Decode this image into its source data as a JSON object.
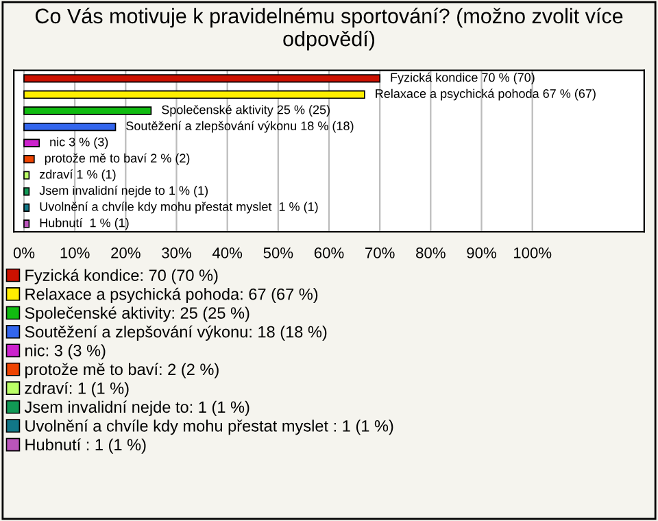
{
  "chart_data": {
    "type": "bar",
    "orientation": "horizontal",
    "title": "Co Vás motivuje k pravidelnému sportování? (možno zvolit více odpovědí)",
    "categories": [
      null,
      null,
      null,
      null,
      null,
      null,
      null,
      null,
      null,
      null
    ],
    "series": [
      {
        "name": "Fyzická kondice: 70 (70 %)",
        "color": "#cc1100",
        "values": [
          70,
          null,
          null,
          null,
          null,
          null,
          null,
          null,
          null,
          null
        ],
        "value_labels": [
          "Fyzická kondice 70 % (70)",
          null,
          null,
          null,
          null,
          null,
          null,
          null,
          null,
          null
        ]
      },
      {
        "name": "Relaxace a psychická pohoda: 67 (67 %)",
        "color": "#ffee00",
        "values": [
          null,
          67,
          null,
          null,
          null,
          null,
          null,
          null,
          null,
          null
        ],
        "value_labels": [
          null,
          "Relaxace a psychická pohoda 67 % (67)",
          null,
          null,
          null,
          null,
          null,
          null,
          null,
          null
        ]
      },
      {
        "name": "Společenské aktivity: 25 (25 %)",
        "color": "#11bb11",
        "values": [
          null,
          null,
          25,
          null,
          null,
          null,
          null,
          null,
          null,
          null
        ],
        "value_labels": [
          null,
          null,
          "Společenské aktivity 25 % (25)",
          null,
          null,
          null,
          null,
          null,
          null,
          null
        ]
      },
      {
        "name": "Soutěžení a zlepšování výkonu: 18 (18 %)",
        "color": "#3366ee",
        "values": [
          null,
          null,
          null,
          18,
          null,
          null,
          null,
          null,
          null,
          null
        ],
        "value_labels": [
          null,
          null,
          null,
          "Soutěžení a zlepšování výkonu 18 % (18)",
          null,
          null,
          null,
          null,
          null,
          null
        ]
      },
      {
        "name": "nic: 3 (3 %)",
        "color": "#cc22cc",
        "values": [
          null,
          null,
          null,
          null,
          3,
          null,
          null,
          null,
          null,
          null
        ],
        "value_labels": [
          null,
          null,
          null,
          null,
          "nic 3 % (3)",
          null,
          null,
          null,
          null,
          null
        ]
      },
      {
        "name": "protože mě to baví: 2 (2 %)",
        "color": "#ee4400",
        "values": [
          null,
          null,
          null,
          null,
          null,
          2,
          null,
          null,
          null,
          null
        ],
        "value_labels": [
          null,
          null,
          null,
          null,
          null,
          "protože mě to baví 2 % (2)",
          null,
          null,
          null,
          null
        ]
      },
      {
        "name": "zdraví: 1 (1 %)",
        "color": "#bbff66",
        "values": [
          null,
          null,
          null,
          null,
          null,
          null,
          1,
          null,
          null,
          null
        ],
        "value_labels": [
          null,
          null,
          null,
          null,
          null,
          null,
          "zdraví 1 % (1)",
          null,
          null,
          null
        ]
      },
      {
        "name": "Jsem invalidní nejde to: 1 (1 %)",
        "color": "#119955",
        "values": [
          null,
          null,
          null,
          null,
          null,
          null,
          null,
          1,
          null,
          null
        ],
        "value_labels": [
          null,
          null,
          null,
          null,
          null,
          null,
          null,
          "Jsem invalidní nejde to 1 % (1)",
          null,
          null
        ]
      },
      {
        "name": "Uvolnění a chvíle kdy mohu přestat myslet : 1 (1 %)",
        "color": "#117788",
        "values": [
          null,
          null,
          null,
          null,
          null,
          null,
          null,
          null,
          1,
          null
        ],
        "value_labels": [
          null,
          null,
          null,
          null,
          null,
          null,
          null,
          null,
          "Uvolnění a chvíle kdy mohu přestat myslet  1 % (1)",
          null
        ]
      },
      {
        "name": "Hubnutí : 1 (1 %)",
        "color": "#bb55bb",
        "values": [
          null,
          null,
          null,
          null,
          null,
          null,
          null,
          null,
          null,
          1
        ],
        "value_labels": [
          null,
          null,
          null,
          null,
          null,
          null,
          null,
          null,
          null,
          "Hubnutí  1 % (1)"
        ]
      }
    ],
    "xlim": [
      -2,
      122
    ],
    "xticks": [
      {
        "value": 0,
        "label": "0%"
      },
      {
        "value": 10,
        "label": "10%"
      },
      {
        "value": 20,
        "label": "20%"
      },
      {
        "value": 30,
        "label": "30%"
      },
      {
        "value": 40,
        "label": "40%"
      },
      {
        "value": 50,
        "label": "50%"
      },
      {
        "value": 60,
        "label": "60%"
      },
      {
        "value": 70,
        "label": "70%"
      },
      {
        "value": 80,
        "label": "80%"
      },
      {
        "value": 90,
        "label": "90%"
      },
      {
        "value": 100,
        "label": "100%"
      }
    ],
    "grid": "x",
    "legend": "bottom"
  }
}
